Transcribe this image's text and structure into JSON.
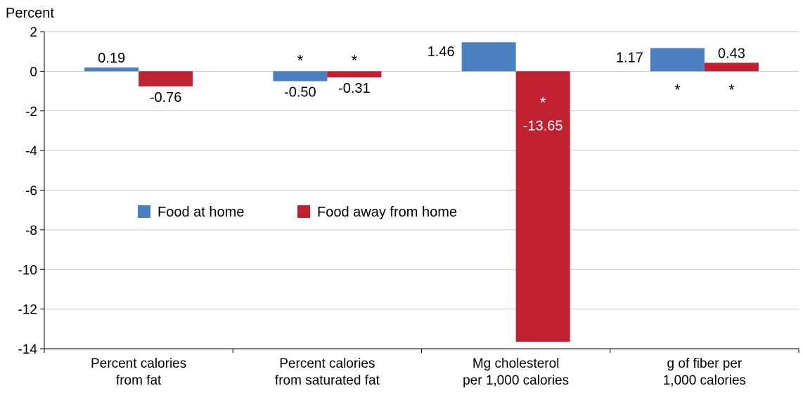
{
  "chart_data": {
    "type": "bar",
    "ylabel": "Percent",
    "ylim": [
      -14,
      2
    ],
    "yticks": [
      2,
      0,
      -2,
      -4,
      -6,
      -8,
      -10,
      -12,
      -14
    ],
    "grid": true,
    "legend_placement": "center-left",
    "categories": [
      [
        "Percent calories",
        "from fat"
      ],
      [
        "Percent calories",
        "from saturated fat"
      ],
      [
        "Mg cholesterol",
        "per 1,000 calories"
      ],
      [
        "g of fiber per",
        "1,000 calories"
      ]
    ],
    "series": [
      {
        "name": "Food at home",
        "color": "#4a7fc1",
        "values": [
          0.19,
          -0.5,
          1.46,
          1.17
        ],
        "labels": [
          "0.19",
          "-0.50",
          "1.46",
          "1.17"
        ],
        "significant": [
          false,
          true,
          false,
          true
        ]
      },
      {
        "name": "Food away from home",
        "color": "#c0202f",
        "values": [
          -0.76,
          -0.31,
          -13.65,
          0.43
        ],
        "labels": [
          "-0.76",
          "-0.31",
          "-13.65",
          "0.43"
        ],
        "significant": [
          false,
          true,
          true,
          true
        ]
      }
    ],
    "significance_marker": "*"
  }
}
